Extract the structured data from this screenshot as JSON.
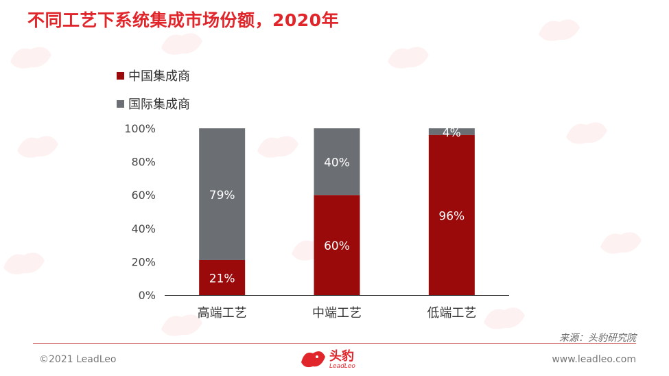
{
  "title": "不同工艺下系统集成市场份额，2020年",
  "colors": {
    "accent": "#e0252b",
    "china": "#9b0a0a",
    "intl": "#6b6f73"
  },
  "chart_data": {
    "type": "bar",
    "stacked": true,
    "categories": [
      "高端工艺",
      "中端工艺",
      "低端工艺"
    ],
    "series": [
      {
        "name": "中国集成商",
        "values": [
          21,
          60,
          96
        ],
        "labels": [
          "21%",
          "60%",
          "96%"
        ],
        "color": "#9b0a0a"
      },
      {
        "name": "国际集成商",
        "values": [
          79,
          40,
          4
        ],
        "labels": [
          "79%",
          "40%",
          "4%"
        ],
        "color": "#6b6f73"
      }
    ],
    "yticks": [
      "0%",
      "20%",
      "40%",
      "60%",
      "80%",
      "100%"
    ],
    "ylim": [
      0,
      100
    ],
    "legend_position": "top-left"
  },
  "footer": {
    "source": "来源：头豹研究院",
    "copyright": "©2021 LeadLeo",
    "website": "www.leadleo.com",
    "logo_cn": "头豹",
    "logo_en": "LeadLeo"
  }
}
